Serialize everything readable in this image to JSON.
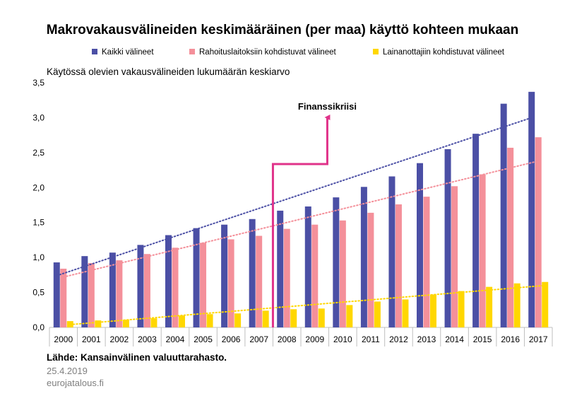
{
  "chart_data": {
    "type": "bar",
    "title": "Makrovakausvälineiden keskimääräinen (per maa) käyttö kohteen mukaan",
    "ylabel": "Käytössä olevien vakausvälineiden lukumäärän keskiarvo",
    "xlabel": "",
    "categories": [
      "2000",
      "2001",
      "2002",
      "2003",
      "2004",
      "2005",
      "2006",
      "2007",
      "2008",
      "2009",
      "2010",
      "2011",
      "2012",
      "2013",
      "2014",
      "2015",
      "2016",
      "2017"
    ],
    "ylim": [
      0,
      3.5
    ],
    "yticks": [
      "0,0",
      "0,5",
      "1,0",
      "1,5",
      "2,0",
      "2,5",
      "3,0",
      "3,5"
    ],
    "series": [
      {
        "name": "Kaikki välineet",
        "color": "#4b4fa5",
        "values": [
          0.93,
          1.02,
          1.07,
          1.18,
          1.32,
          1.42,
          1.47,
          1.55,
          1.67,
          1.73,
          1.86,
          2.01,
          2.16,
          2.35,
          2.55,
          2.77,
          3.2,
          3.37
        ]
      },
      {
        "name": "Rahoituslaitoksiin kohdistuvat välineet",
        "color": "#f4909a",
        "values": [
          0.84,
          0.92,
          0.96,
          1.05,
          1.14,
          1.21,
          1.26,
          1.31,
          1.41,
          1.47,
          1.53,
          1.64,
          1.76,
          1.87,
          2.02,
          2.19,
          2.57,
          2.72
        ]
      },
      {
        "name": "Lainanottajiin kohdistuvat välineet",
        "color": "#ffd700",
        "values": [
          0.09,
          0.1,
          0.11,
          0.13,
          0.17,
          0.19,
          0.2,
          0.24,
          0.26,
          0.27,
          0.32,
          0.37,
          0.4,
          0.47,
          0.52,
          0.58,
          0.63,
          0.65
        ]
      }
    ],
    "trendlines": [
      {
        "series": "Kaikki välineet",
        "color": "#4b4fa5",
        "start": 0.74,
        "end": 3.0
      },
      {
        "series": "Rahoituslaitoksiin kohdistuvat välineet",
        "color": "#f4909a",
        "start": 0.72,
        "end": 2.38
      },
      {
        "series": "Lainanottajiin kohdistuvat välineet",
        "color": "#ffd700",
        "start": 0.04,
        "end": 0.6
      }
    ],
    "annotation": {
      "text": "Finanssikriisi",
      "category": "2008",
      "color": "#e0338a"
    },
    "grid": false,
    "legend": "top"
  },
  "footer": {
    "source": "Lähde: Kansainvälinen valuuttarahasto.",
    "date": "25.4.2019",
    "site": "eurojatalous.fi"
  }
}
